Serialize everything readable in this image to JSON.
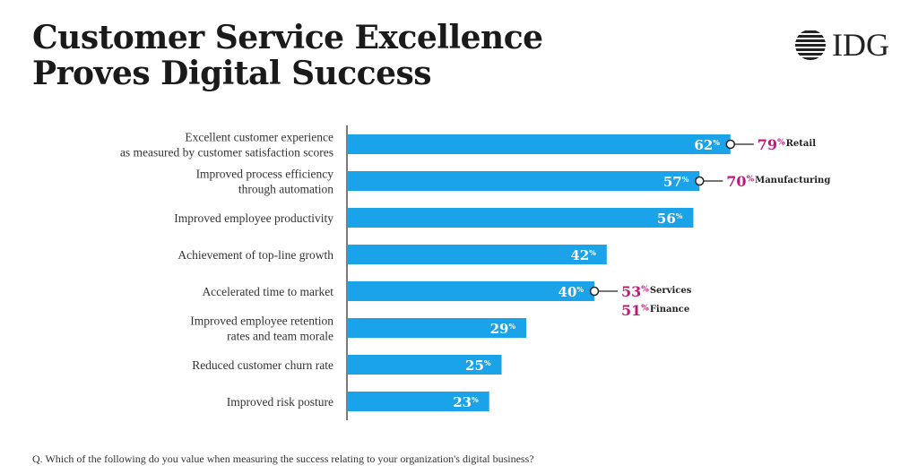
{
  "header": {
    "title_line1": "Customer Service Excellence",
    "title_line2": "Proves Digital Success",
    "logo": "IDG"
  },
  "footnote": "Q. Which of the following do you value when measuring the success relating to your organization's digital business?",
  "colors": {
    "bar": "#1aa3e8",
    "accent": "#c2187a",
    "text": "#333333",
    "axis": "#222222"
  },
  "chart_data": {
    "type": "bar",
    "orientation": "horizontal",
    "xlim": [
      0,
      100
    ],
    "unit_symbol": "%",
    "categories": [
      [
        "Excellent customer experience",
        "as measured by customer satisfaction scores"
      ],
      [
        "Improved process efficiency",
        "through automation"
      ],
      [
        "Improved employee productivity"
      ],
      [
        "Achievement of top-line growth"
      ],
      [
        "Accelerated time to market"
      ],
      [
        "Improved employee retention",
        "rates and team morale"
      ],
      [
        "Reduced customer churn rate"
      ],
      [
        "Improved risk posture"
      ]
    ],
    "values": [
      62,
      57,
      56,
      42,
      40,
      29,
      25,
      23
    ],
    "callouts": [
      {
        "bar_index": 0,
        "items": [
          {
            "value": 79,
            "label": "Retail"
          }
        ]
      },
      {
        "bar_index": 1,
        "items": [
          {
            "value": 70,
            "label": "Manufacturing"
          }
        ]
      },
      {
        "bar_index": 4,
        "items": [
          {
            "value": 53,
            "label": "Services"
          },
          {
            "value": 51,
            "label": "Finance"
          }
        ]
      }
    ]
  }
}
